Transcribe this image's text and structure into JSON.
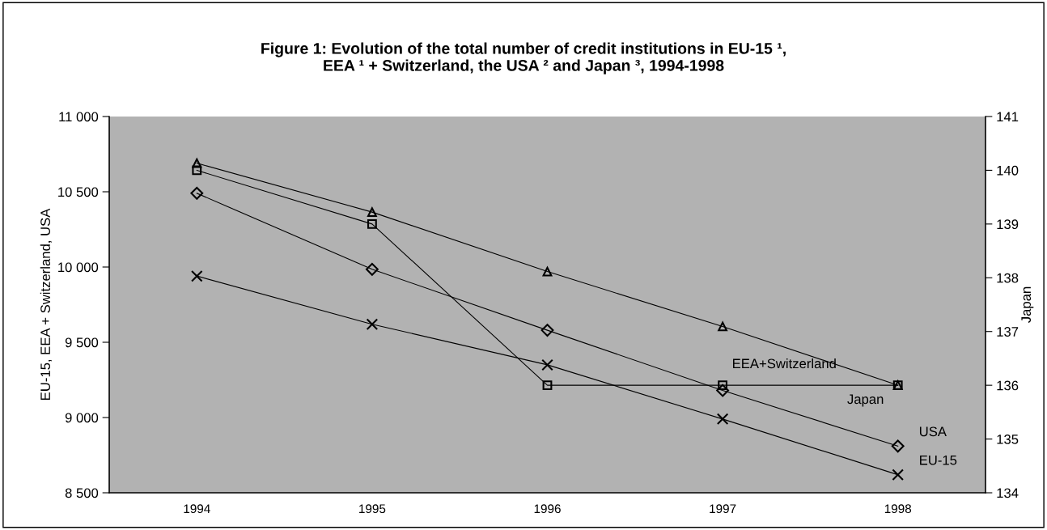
{
  "chart_data": {
    "type": "line",
    "title": "Figure 1: Evolution of the total number of credit institutions in EU-15 ¹,\nEEA ¹ + Switzerland, the USA ² and Japan ³, 1994-1998",
    "ylabel": "EU-15, EEA + Switzerland, USA",
    "y2label": "Japan",
    "categories": [
      "1994",
      "1995",
      "1996",
      "1997",
      "1998"
    ],
    "ylim": [
      8500,
      11000
    ],
    "yticks": [
      {
        "value": 8500,
        "label": "8 500"
      },
      {
        "value": 9000,
        "label": "9 000"
      },
      {
        "value": 9500,
        "label": "9 500"
      },
      {
        "value": 10000,
        "label": "10 000"
      },
      {
        "value": 10500,
        "label": "10 500"
      },
      {
        "value": 11000,
        "label": "11 000"
      }
    ],
    "y2lim": [
      134,
      141
    ],
    "y2ticks": [
      134,
      135,
      136,
      137,
      138,
      139,
      140,
      141
    ],
    "legend": false,
    "line_style": "solid",
    "series": [
      {
        "name": "EEA+Switzerland",
        "color": "#000000",
        "marker": "triangle",
        "values": [
          10690,
          10365,
          9970,
          9605,
          9215
        ]
      },
      {
        "name": "Japan",
        "color": "#000000",
        "marker": "square",
        "axis": "y2",
        "values": [
          140,
          139,
          136,
          136,
          136
        ]
      },
      {
        "name": "USA",
        "color": "#000000",
        "marker": "diamond",
        "values": [
          10490,
          9985,
          9580,
          9180,
          8810
        ]
      },
      {
        "name": "EU-15",
        "color": "#000000",
        "marker": "cross",
        "values": [
          9940,
          9620,
          9350,
          8990,
          8620
        ]
      }
    ]
  }
}
